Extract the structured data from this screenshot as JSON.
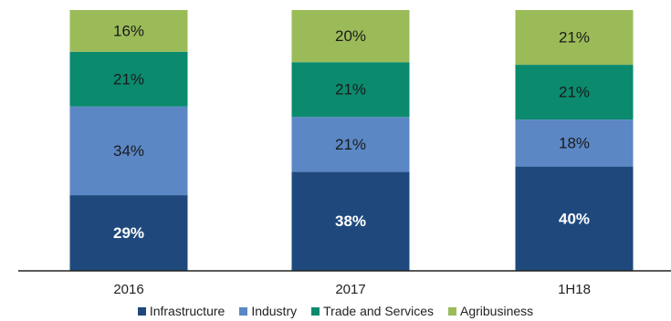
{
  "chart_data": {
    "type": "bar",
    "stacked": true,
    "categories": [
      "2016",
      "2017",
      "1H18"
    ],
    "series": [
      {
        "name": "Infrastructure",
        "color": "#1f497d",
        "values": [
          29,
          38,
          40
        ],
        "labels": [
          "29%",
          "38%",
          "40%"
        ]
      },
      {
        "name": "Industry",
        "color": "#5b87c5",
        "values": [
          34,
          21,
          18
        ],
        "labels": [
          "34%",
          "21%",
          "18%"
        ]
      },
      {
        "name": "Trade and Services",
        "color": "#0b8a6e",
        "values": [
          21,
          21,
          21
        ],
        "labels": [
          "21%",
          "21%",
          "21%"
        ]
      },
      {
        "name": "Agribusiness",
        "color": "#9bbb59",
        "values": [
          16,
          20,
          21
        ],
        "labels": [
          "16%",
          "20%",
          "21%"
        ]
      }
    ],
    "ylim": [
      0,
      100
    ],
    "legend_position": "bottom",
    "grid": false
  }
}
